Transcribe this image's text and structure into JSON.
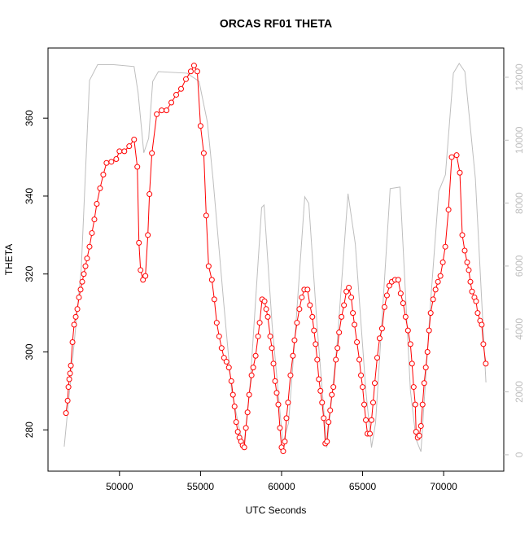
{
  "chart_data": {
    "type": "line",
    "title": "ORCAS RF01 THETA",
    "x_label": "UTC Seconds",
    "y_label": "THETA",
    "xlim": [
      45590,
      73710
    ],
    "xticks": [
      50000,
      55000,
      60000,
      65000,
      70000
    ],
    "ylim": [
      269.4,
      378.0
    ],
    "yticks": [
      280,
      300,
      320,
      340,
      360
    ],
    "y2lim": [
      -520,
      12930
    ],
    "y2ticks": [
      0,
      2000,
      4000,
      6000,
      8000,
      10000,
      12000
    ],
    "series": [
      {
        "color": "#bebebe",
        "axis": "y2",
        "marker": false,
        "x": [
          46590,
          47640,
          48150,
          48650,
          49650,
          50900,
          51150,
          51500,
          51800,
          52050,
          52400,
          54160,
          54910,
          55420,
          55770,
          56420,
          56920,
          57420,
          57670,
          58070,
          58770,
          58920,
          59420,
          60080,
          60430,
          60880,
          61430,
          61680,
          62190,
          62790,
          63440,
          64100,
          64550,
          65200,
          65550,
          65800,
          66700,
          67310,
          67950,
          68300,
          68600,
          69200,
          69700,
          70110,
          70600,
          70960,
          71310,
          71960,
          72610
        ],
        "values": [
          260,
          5900,
          11900,
          12400,
          12400,
          12340,
          11500,
          9600,
          10060,
          11870,
          12180,
          12130,
          11870,
          10580,
          8770,
          4890,
          2040,
          750,
          230,
          2300,
          7860,
          7940,
          4110,
          360,
          1010,
          4110,
          8200,
          7990,
          4110,
          230,
          3600,
          8300,
          6700,
          2040,
          230,
          1010,
          8460,
          8510,
          2040,
          490,
          100,
          4890,
          8380,
          8900,
          12130,
          12440,
          12180,
          8770,
          2300
        ]
      },
      {
        "color": "#ff0000",
        "marker": true,
        "x": [
          46700,
          46800,
          46850,
          46900,
          46950,
          47000,
          47100,
          47200,
          47300,
          47400,
          47500,
          47600,
          47700,
          47800,
          47900,
          48000,
          48150,
          48300,
          48450,
          48600,
          48800,
          49000,
          49200,
          49500,
          49800,
          50000,
          50300,
          50600,
          50900,
          51100,
          51200,
          51300,
          51450,
          51600,
          51750,
          51850,
          52000,
          52300,
          52600,
          52900,
          53200,
          53500,
          53800,
          54100,
          54400,
          54600,
          54800,
          55000,
          55200,
          55350,
          55500,
          55700,
          55850,
          56000,
          56150,
          56300,
          56450,
          56600,
          56750,
          56900,
          57000,
          57100,
          57200,
          57300,
          57400,
          57500,
          57600,
          57700,
          57800,
          57900,
          58000,
          58150,
          58250,
          58400,
          58550,
          58650,
          58800,
          58950,
          59050,
          59150,
          59300,
          59400,
          59500,
          59600,
          59700,
          59800,
          59900,
          60000,
          60100,
          60200,
          60300,
          60400,
          60550,
          60700,
          60800,
          60950,
          61100,
          61250,
          61400,
          61600,
          61750,
          61900,
          62000,
          62100,
          62200,
          62300,
          62400,
          62500,
          62600,
          62700,
          62800,
          62900,
          63000,
          63100,
          63200,
          63350,
          63450,
          63550,
          63700,
          63850,
          64000,
          64150,
          64300,
          64400,
          64500,
          64650,
          64800,
          64900,
          65000,
          65100,
          65200,
          65300,
          65450,
          65550,
          65650,
          65750,
          65900,
          66050,
          66200,
          66350,
          66500,
          66650,
          66800,
          67000,
          67200,
          67350,
          67500,
          67650,
          67800,
          67950,
          68050,
          68150,
          68250,
          68300,
          68400,
          68500,
          68600,
          68700,
          68800,
          68900,
          69000,
          69100,
          69200,
          69350,
          69500,
          69650,
          69800,
          69950,
          70100,
          70300,
          70500,
          70800,
          71000,
          71150,
          71300,
          71450,
          71550,
          71650,
          71750,
          71900,
          72000,
          72100,
          72250,
          72350,
          72450,
          72600
        ],
        "values": [
          284.3,
          287.5,
          291,
          293,
          294.5,
          296.5,
          302.5,
          307,
          309,
          311,
          314,
          316,
          318,
          320,
          322,
          324,
          327,
          330.5,
          334,
          338,
          342,
          345.5,
          348.5,
          348.8,
          349.5,
          351.5,
          351.5,
          352.8,
          354.5,
          347.5,
          328,
          321,
          318.5,
          319.5,
          330,
          340.5,
          351,
          361,
          362,
          362,
          364,
          366,
          367.5,
          370,
          372,
          373.5,
          372,
          358,
          351,
          335,
          322,
          318.5,
          313.5,
          307.5,
          304,
          301,
          298.5,
          297.5,
          296,
          292.5,
          289,
          286,
          282,
          279.5,
          278,
          277,
          276,
          275.5,
          280.5,
          284.5,
          289,
          294,
          296,
          299,
          304,
          307.5,
          313.5,
          313,
          311,
          309,
          304,
          301,
          297,
          292.5,
          289.5,
          286.5,
          280.5,
          275.5,
          274.5,
          277,
          283,
          287,
          294,
          299,
          303,
          307.5,
          311,
          314,
          316,
          316,
          312,
          309,
          305.5,
          302,
          298,
          293,
          290,
          287,
          283,
          276.5,
          277,
          282,
          285,
          289,
          291,
          298,
          301,
          305,
          309,
          312,
          315.5,
          316.5,
          314,
          310,
          307,
          302.5,
          298,
          294,
          291,
          286.5,
          282.5,
          279,
          279,
          282.5,
          287,
          292,
          298.5,
          303.5,
          306,
          311.5,
          314.5,
          317,
          318,
          318.5,
          318.5,
          315,
          312.5,
          309,
          305.5,
          302,
          297,
          291,
          286.5,
          279.5,
          278,
          278.5,
          281,
          286.5,
          292,
          296,
          300,
          305.5,
          310,
          313.5,
          316,
          318,
          319.5,
          323,
          327,
          336.5,
          350,
          350.5,
          346,
          330,
          326,
          323,
          321,
          318,
          315.5,
          314,
          313,
          310,
          308,
          307,
          302,
          297
        ]
      }
    ]
  }
}
